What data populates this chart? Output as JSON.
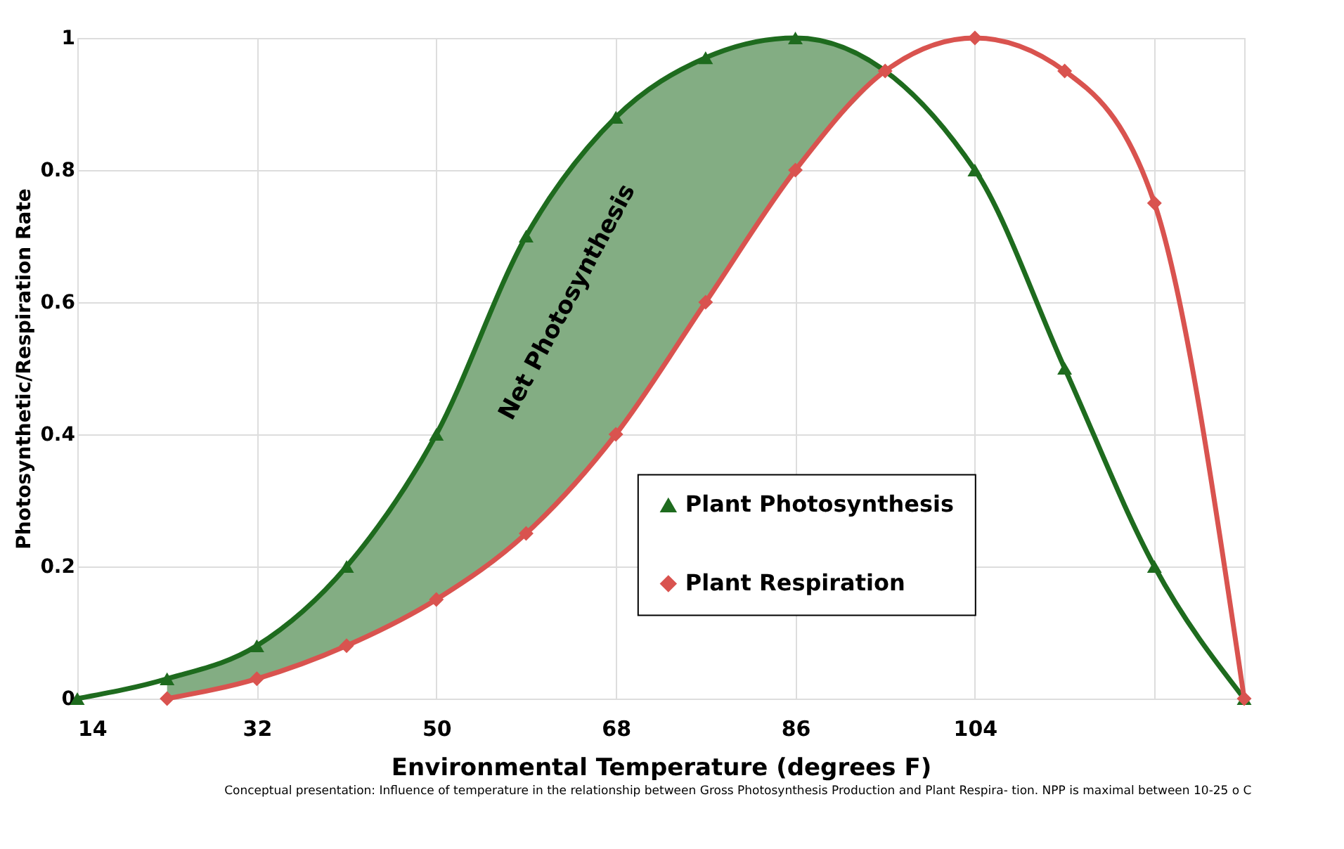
{
  "chart_data": {
    "type": "line",
    "xlabel": "Environmental Temperature    (degrees F)",
    "ylabel": "Photosynthetic/Respiration Rate",
    "x": [
      14,
      23,
      32,
      41,
      50,
      59,
      68,
      77,
      86,
      95,
      104,
      113,
      122,
      131
    ],
    "series": [
      {
        "name": "Plant Photosynthesis",
        "color": "#1e6b1e",
        "marker": "triangle",
        "values": [
          0,
          0.03,
          0.08,
          0.2,
          0.4,
          0.7,
          0.88,
          0.97,
          1.0,
          null,
          0.8,
          0.5,
          0.2,
          0
        ],
        "lower": [
          null,
          0,
          0.03,
          0.08,
          0.15,
          0.25,
          0.4,
          0.6,
          0.8,
          0.95,
          null,
          null,
          null,
          null
        ],
        "upper": [
          null,
          0.03,
          0.08,
          0.2,
          0.4,
          0.7,
          0.88,
          0.97,
          1.0,
          0.95,
          null,
          null,
          null,
          null
        ]
      },
      {
        "name": "Plant Respiration",
        "color": "#d9534f",
        "marker": "diamond",
        "values": [
          null,
          0,
          0.03,
          0.08,
          0.15,
          0.25,
          0.4,
          0.6,
          0.8,
          0.95,
          1.0,
          0.95,
          0.75,
          0
        ]
      }
    ],
    "xlim": [
      14,
      131
    ],
    "xticks": [
      14,
      32,
      50,
      68,
      86,
      104,
      {
        "value": 122,
        "label": null
      }
    ],
    "ylim": [
      0,
      1
    ],
    "yticks": [
      0,
      0.2,
      0.4,
      0.6,
      0.8,
      1
    ],
    "grid": true,
    "legend": "bottom right",
    "annotations": [
      "Net Photosynthesis",
      "Conceptual presentation: Influence of temperature in the relationship between Gross Photosynthesis Production and Plant Respira- tion. NPP is maximal between 10-25 o C"
    ]
  }
}
